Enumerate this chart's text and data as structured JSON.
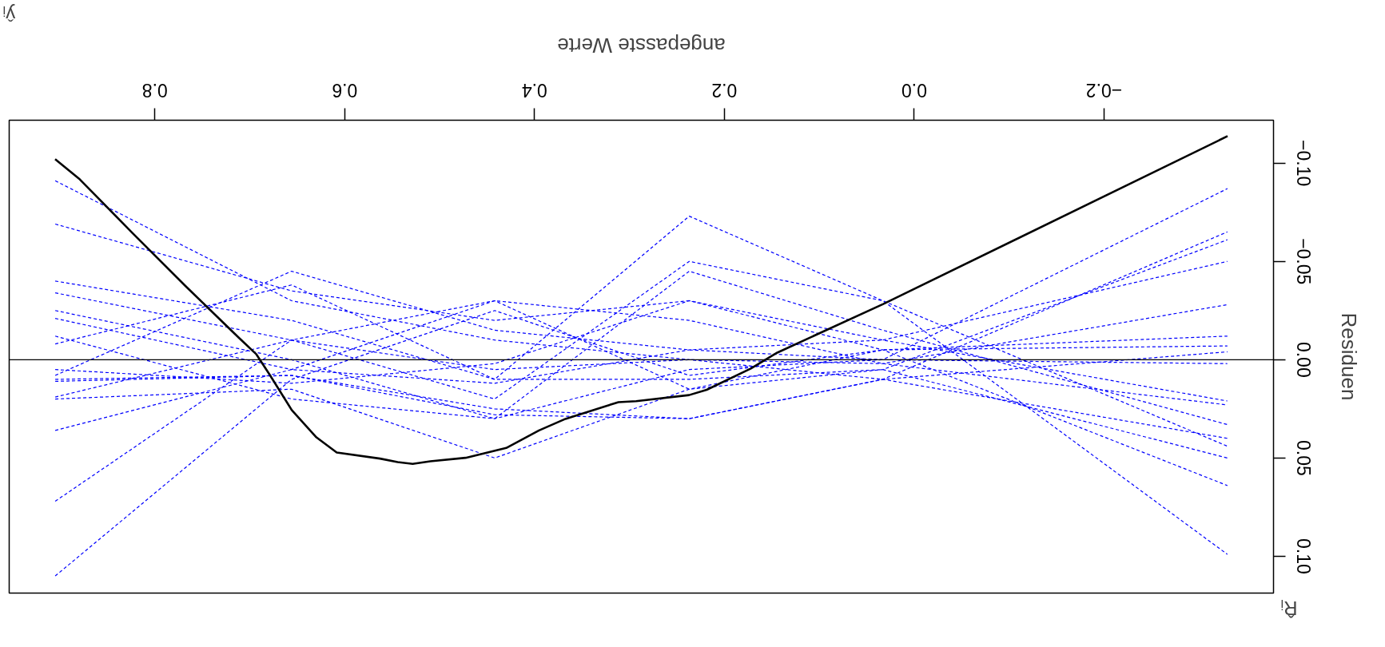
{
  "chart_data": {
    "type": "line",
    "xlabel": "angepasste Werte",
    "ylabel": "Residuen",
    "annotations": [
      "ŷᵢ",
      "R̂ᵢ"
    ],
    "xlim": [
      0.9535,
      -0.3786
    ],
    "ylim": [
      0.1187,
      -0.1218
    ],
    "xticks": [
      {
        "value": -0.2,
        "label": "−0.2"
      },
      {
        "value": 0,
        "label": "0.0"
      },
      {
        "value": 0.2,
        "label": "0.2"
      },
      {
        "value": 0.4,
        "label": "0.4"
      },
      {
        "value": 0.6,
        "label": "0.6"
      },
      {
        "value": 0.8,
        "label": "0.8"
      }
    ],
    "yticks": [
      {
        "value": -0.1,
        "label": "−0.10"
      },
      {
        "value": -0.05,
        "label": "−0.05"
      },
      {
        "value": 0,
        "label": "0.00"
      },
      {
        "value": 0.05,
        "label": "0.05"
      },
      {
        "value": 0.1,
        "label": "0.10"
      }
    ],
    "grid": false,
    "marker": "none",
    "ref_lines": [
      {
        "axis": "y",
        "value": 0,
        "color": "#000000",
        "line_style": "solid"
      }
    ],
    "x": [
      0.905,
      0.656,
      0.442,
      0.237,
      0.033,
      -0.33
    ],
    "series": [
      {
        "color": "#0000ff",
        "line_style": "dashed",
        "values": [
          -0.091,
          -0.03,
          -0.01,
          0.0,
          0.01,
          0.04
        ]
      },
      {
        "color": "#0000ff",
        "line_style": "dashed",
        "values": [
          -0.069,
          -0.035,
          -0.02,
          -0.03,
          -0.005,
          0.064
        ]
      },
      {
        "color": "#0000ff",
        "line_style": "dashed",
        "values": [
          -0.04,
          -0.02,
          0.01,
          -0.073,
          -0.03,
          0.099
        ]
      },
      {
        "color": "#0000ff",
        "line_style": "dashed",
        "values": [
          -0.034,
          -0.01,
          0.02,
          -0.05,
          -0.03,
          0.044
        ]
      },
      {
        "color": "#0000ff",
        "line_style": "dashed",
        "values": [
          -0.025,
          0.0,
          0.03,
          -0.045,
          -0.015,
          0.033
        ]
      },
      {
        "color": "#0000ff",
        "line_style": "dashed",
        "values": [
          -0.021,
          0.005,
          -0.03,
          -0.02,
          0.002,
          0.023
        ]
      },
      {
        "color": "#0000ff",
        "line_style": "dashed",
        "values": [
          -0.008,
          -0.038,
          0.01,
          0.01,
          0.005,
          0.05
        ]
      },
      {
        "color": "#0000ff",
        "line_style": "dashed",
        "values": [
          0.008,
          -0.045,
          -0.015,
          -0.005,
          0.0,
          -0.087
        ]
      },
      {
        "color": "#0000ff",
        "line_style": "dashed",
        "values": [
          0.011,
          0.008,
          0.025,
          0.03,
          0.01,
          -0.065
        ]
      },
      {
        "color": "#0000ff",
        "line_style": "dashed",
        "values": [
          0.019,
          -0.01,
          -0.03,
          0.015,
          0.005,
          -0.061
        ]
      },
      {
        "color": "#0000ff",
        "line_style": "dashed",
        "values": [
          0.036,
          0.005,
          0.012,
          -0.005,
          -0.01,
          -0.05
        ]
      },
      {
        "color": "#0000ff",
        "line_style": "dashed",
        "values": [
          0.072,
          -0.01,
          0.005,
          0.0,
          0.002,
          -0.028
        ]
      },
      {
        "color": "#0000ff",
        "line_style": "dashed",
        "values": [
          0.11,
          0.01,
          -0.025,
          0.008,
          -0.005,
          -0.012
        ]
      },
      {
        "color": "#0000ff",
        "line_style": "dashed",
        "values": [
          0.02,
          0.015,
          0.05,
          0.015,
          -0.005,
          -0.007
        ]
      },
      {
        "color": "#0000ff",
        "line_style": "dashed",
        "values": [
          0.01,
          0.008,
          0.028,
          0.03,
          0.01,
          -0.004
        ]
      },
      {
        "color": "#0000ff",
        "line_style": "dashed",
        "values": [
          -0.012,
          0.02,
          0.03,
          0.005,
          0.0,
          0.002
        ]
      },
      {
        "color": "#0000ff",
        "line_style": "dashed",
        "values": [
          0.005,
          0.012,
          0.002,
          -0.03,
          -0.01,
          0.021
        ]
      },
      {
        "color": "#000000",
        "line_style": "solid",
        "x": [
          0.9051,
          0.8791,
          0.8233,
          0.7674,
          0.7116,
          0.693,
          0.6791,
          0.6558,
          0.6298,
          0.6084,
          0.5628,
          0.5442,
          0.5284,
          0.5098,
          0.4726,
          0.4298,
          0.3953,
          0.3674,
          0.3116,
          0.293,
          0.2372,
          0.2186,
          0.1721,
          0.1442,
          0.0326,
          -0.3302
        ],
        "values": [
          -0.102,
          -0.0917,
          -0.0643,
          -0.0373,
          -0.0112,
          -0.0027,
          0.0076,
          0.0256,
          0.0395,
          0.0472,
          0.0503,
          0.0521,
          0.053,
          0.0517,
          0.0499,
          0.0449,
          0.036,
          0.0301,
          0.0216,
          0.0211,
          0.018,
          0.0153,
          0.0045,
          -0.0036,
          -0.0283,
          -0.1137
        ]
      }
    ]
  }
}
